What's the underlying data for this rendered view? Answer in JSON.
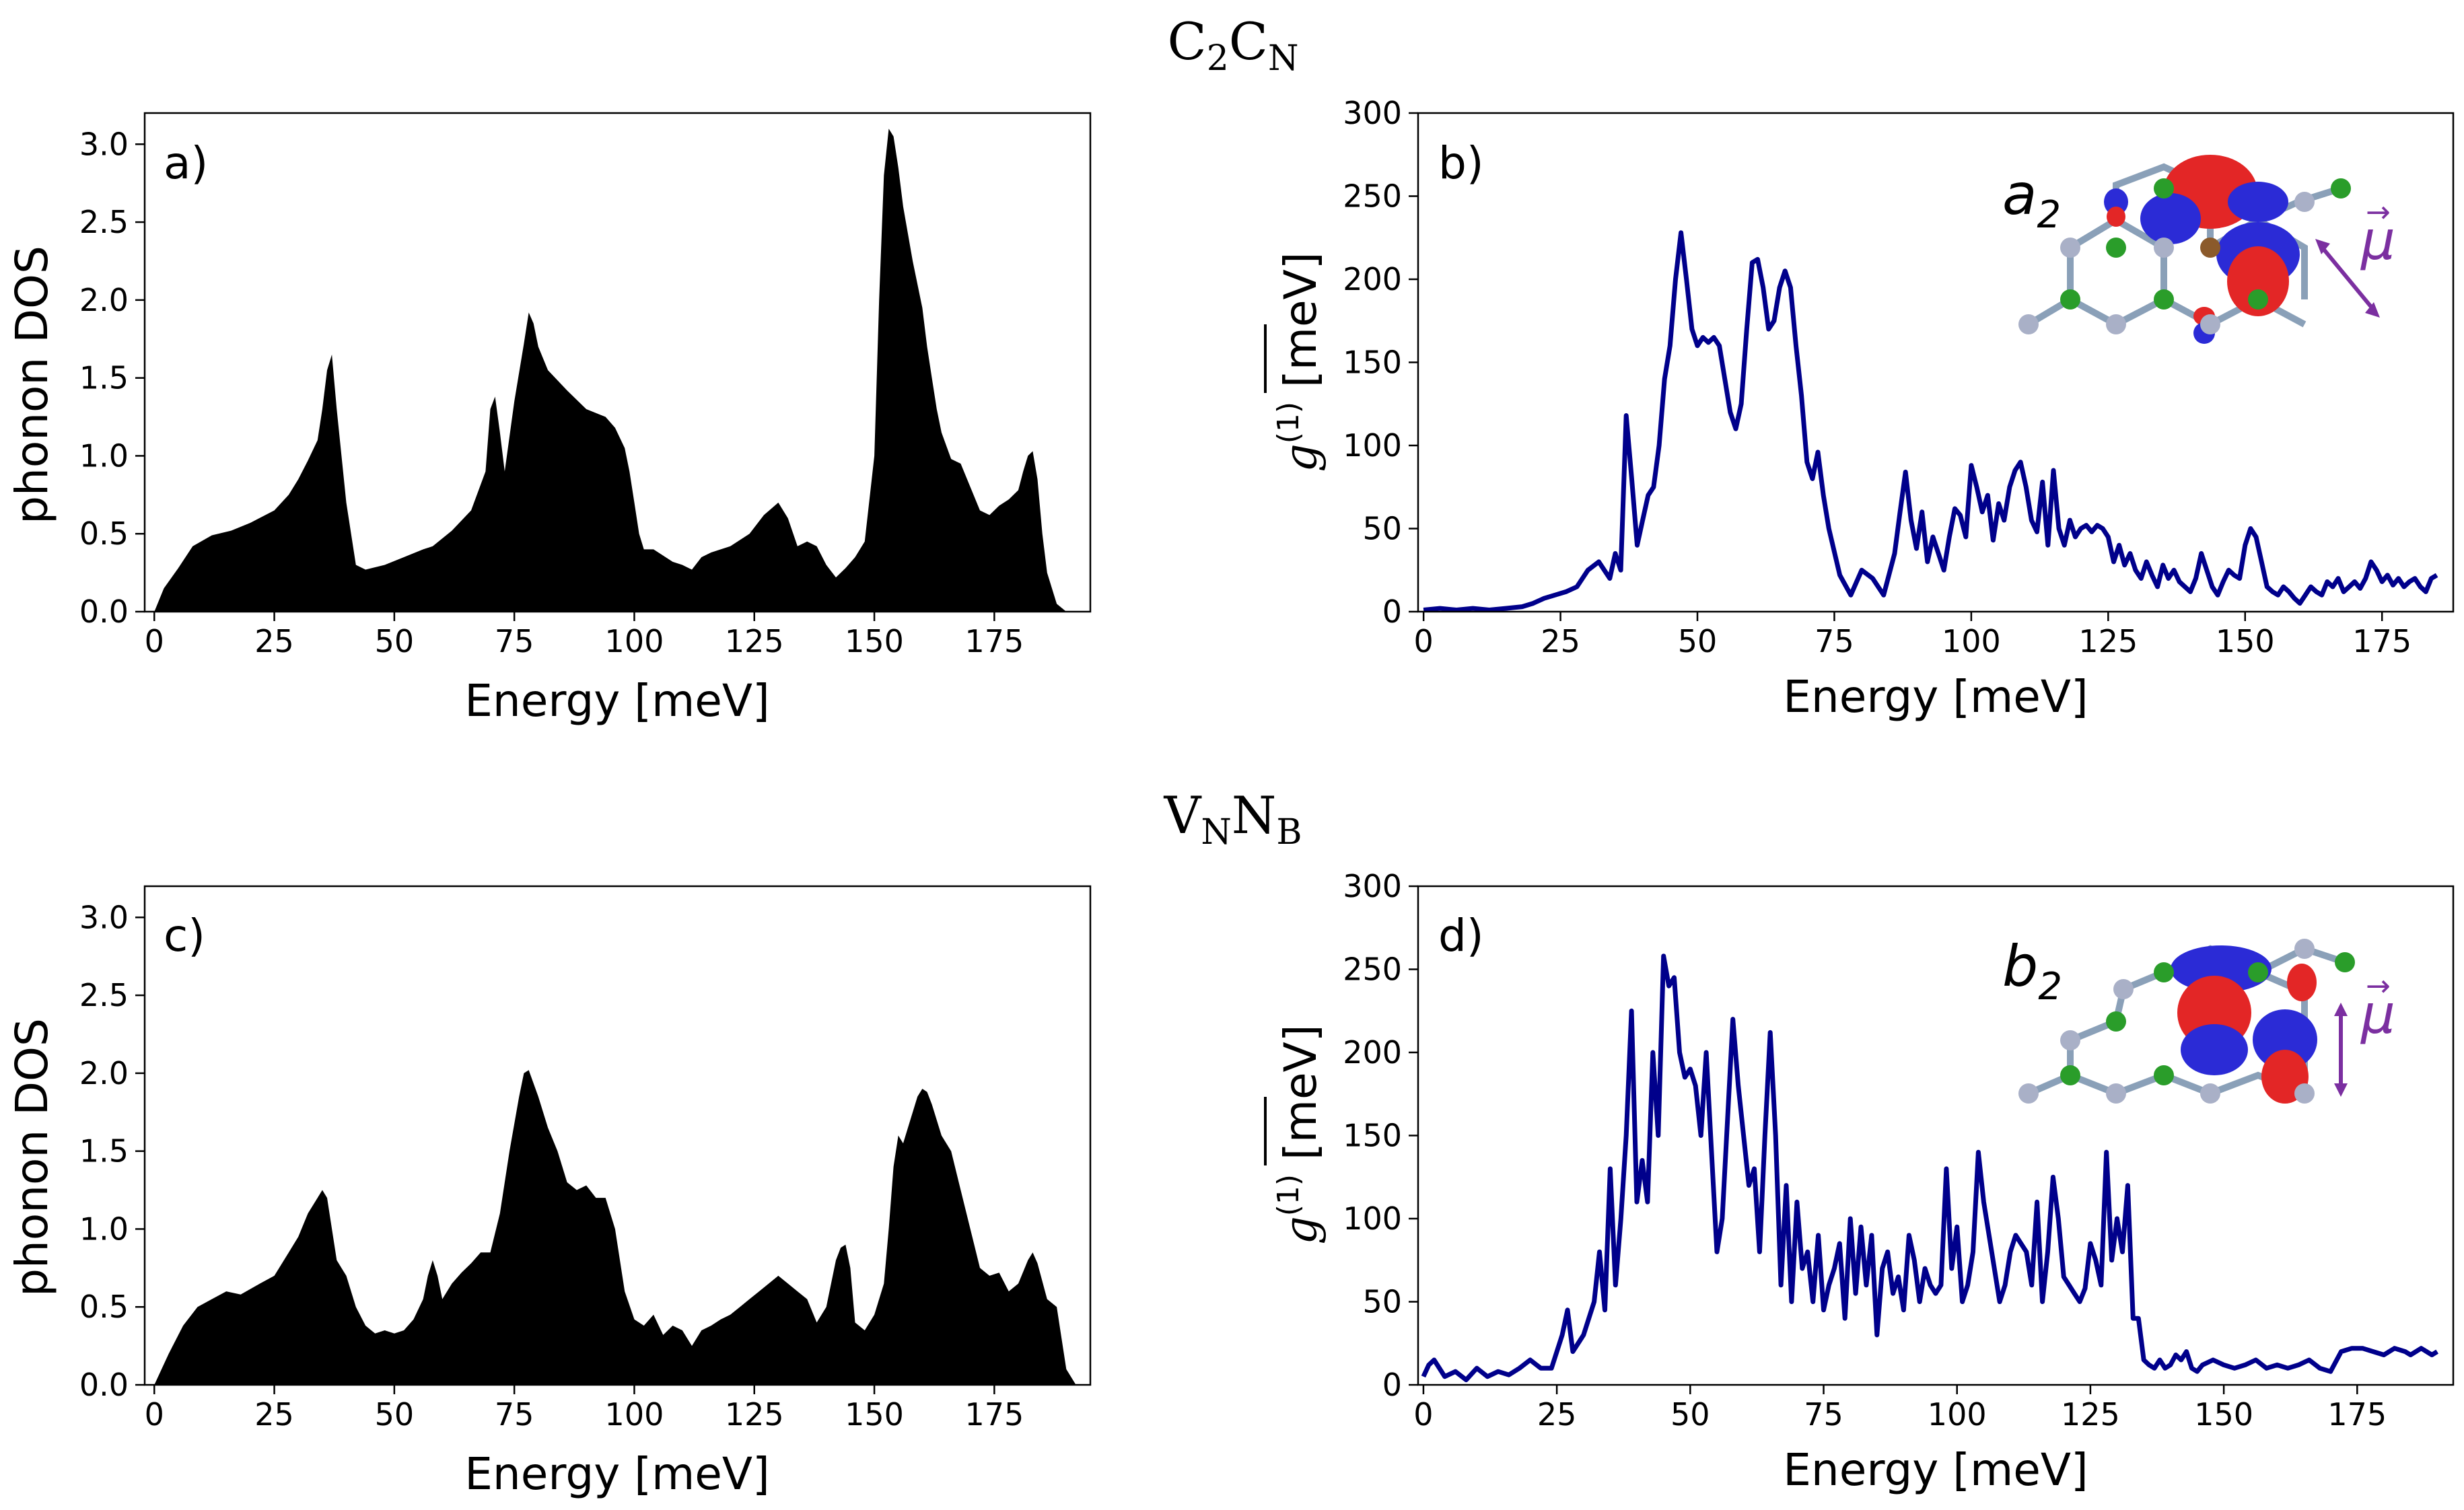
{
  "figure": {
    "rows": [
      {
        "title_main1": "C",
        "title_sub1": "2",
        "title_main2": "C",
        "title_sub2": "N"
      },
      {
        "title_main1": "V",
        "title_sub1": "N",
        "title_main2": "N",
        "title_sub2": "B"
      }
    ]
  },
  "colors": {
    "dos_fill": "#000000",
    "coupling_line": "#00008B",
    "orbital_red": "#e32626",
    "orbital_blue": "#2b2bd6",
    "atom_green": "#2a9d2a",
    "atom_grey": "#a9b0c7",
    "atom_brown": "#8b5a2b",
    "dipole_purple": "#7b2fa0"
  },
  "chart_data": [
    {
      "id": "a",
      "type": "area",
      "panel_label": "a)",
      "xlabel": "Energy [meV]",
      "ylabel": "phonon DOS",
      "xlim": [
        -2,
        195
      ],
      "ylim": [
        0,
        3.2
      ],
      "xticks": [
        0,
        25,
        50,
        75,
        100,
        125,
        150,
        175
      ],
      "yticks": [
        0.0,
        0.5,
        1.0,
        1.5,
        2.0,
        2.5,
        3.0
      ],
      "ytick_labels": [
        "0.0",
        "0.5",
        "1.0",
        "1.5",
        "2.0",
        "2.5",
        "3.0"
      ],
      "x": [
        0,
        2,
        5,
        8,
        12,
        16,
        20,
        25,
        28,
        30,
        32,
        34,
        35,
        36,
        37,
        38,
        40,
        42,
        44,
        48,
        52,
        56,
        58,
        62,
        66,
        69,
        70,
        71,
        72,
        73,
        75,
        77,
        78,
        79,
        80,
        82,
        86,
        90,
        94,
        96,
        98,
        99,
        100,
        101,
        102,
        104,
        108,
        110,
        112,
        114,
        116,
        120,
        124,
        127,
        130,
        132,
        134,
        136,
        138,
        140,
        142,
        144,
        146,
        148,
        150,
        151,
        152,
        153,
        154,
        155,
        156,
        158,
        160,
        161,
        162,
        163,
        164,
        166,
        168,
        170,
        172,
        174,
        176,
        178,
        180,
        181,
        182,
        183,
        184,
        185,
        186,
        188,
        190,
        192
      ],
      "values": [
        0.0,
        0.15,
        0.28,
        0.42,
        0.49,
        0.52,
        0.57,
        0.65,
        0.75,
        0.85,
        0.97,
        1.1,
        1.3,
        1.55,
        1.65,
        1.3,
        0.7,
        0.3,
        0.27,
        0.3,
        0.35,
        0.4,
        0.42,
        0.52,
        0.65,
        0.9,
        1.3,
        1.38,
        1.15,
        0.9,
        1.35,
        1.72,
        1.92,
        1.85,
        1.7,
        1.55,
        1.42,
        1.3,
        1.25,
        1.18,
        1.05,
        0.9,
        0.7,
        0.5,
        0.4,
        0.4,
        0.32,
        0.3,
        0.27,
        0.35,
        0.38,
        0.42,
        0.5,
        0.62,
        0.7,
        0.6,
        0.42,
        0.45,
        0.42,
        0.3,
        0.22,
        0.28,
        0.35,
        0.45,
        1.0,
        2.0,
        2.8,
        3.1,
        3.05,
        2.85,
        2.6,
        2.25,
        1.95,
        1.7,
        1.5,
        1.3,
        1.15,
        0.98,
        0.95,
        0.8,
        0.65,
        0.62,
        0.68,
        0.72,
        0.78,
        0.9,
        1.0,
        1.03,
        0.85,
        0.5,
        0.25,
        0.05,
        0.0,
        0.0
      ]
    },
    {
      "id": "b",
      "type": "line",
      "panel_label": "b)",
      "xlabel": "Energy [meV]",
      "ylabel": "g(1) [meV]",
      "ylabel_symbol": "g",
      "ylabel_superscript": "(1)",
      "ylabel_unit": " [meV]",
      "orbital_label_base": "a",
      "orbital_label_sub": "2",
      "dipole_label": "μ",
      "xlim": [
        -1,
        188
      ],
      "ylim": [
        0,
        300
      ],
      "xticks": [
        0,
        25,
        50,
        75,
        100,
        125,
        150,
        175
      ],
      "yticks": [
        0,
        50,
        100,
        150,
        200,
        250,
        300
      ],
      "x": [
        0,
        3,
        6,
        9,
        12,
        15,
        18,
        20,
        22,
        24,
        26,
        28,
        30,
        32,
        34,
        35,
        36,
        37,
        38,
        39,
        40,
        41,
        42,
        43,
        44,
        45,
        46,
        47,
        48,
        49,
        50,
        51,
        52,
        53,
        54,
        55,
        56,
        57,
        58,
        59,
        60,
        61,
        62,
        63,
        64,
        65,
        66,
        67,
        68,
        69,
        70,
        71,
        72,
        73,
        74,
        76,
        78,
        80,
        82,
        84,
        86,
        87,
        88,
        89,
        90,
        91,
        92,
        93,
        94,
        95,
        96,
        97,
        98,
        99,
        100,
        101,
        102,
        103,
        104,
        105,
        106,
        107,
        108,
        109,
        110,
        111,
        112,
        113,
        114,
        115,
        116,
        117,
        118,
        119,
        120,
        121,
        122,
        123,
        124,
        125,
        126,
        127,
        128,
        129,
        130,
        131,
        132,
        133,
        134,
        135,
        136,
        137,
        138,
        139,
        140,
        141,
        142,
        143,
        144,
        145,
        146,
        147,
        148,
        149,
        150,
        151,
        152,
        153,
        154,
        155,
        156,
        157,
        158,
        159,
        160,
        161,
        162,
        163,
        164,
        165,
        166,
        167,
        168,
        169,
        170,
        171,
        172,
        173,
        174,
        175,
        176,
        177,
        178,
        179,
        180,
        181,
        182,
        183,
        184,
        185
      ],
      "values": [
        1,
        2,
        1,
        2,
        1,
        2,
        3,
        5,
        8,
        10,
        12,
        15,
        25,
        30,
        20,
        35,
        25,
        118,
        80,
        40,
        55,
        70,
        75,
        100,
        140,
        160,
        200,
        228,
        200,
        170,
        160,
        165,
        162,
        165,
        160,
        140,
        120,
        110,
        125,
        170,
        210,
        212,
        195,
        170,
        175,
        195,
        205,
        195,
        160,
        130,
        90,
        80,
        96,
        70,
        50,
        22,
        10,
        25,
        20,
        10,
        35,
        60,
        84,
        55,
        38,
        60,
        30,
        45,
        35,
        25,
        45,
        62,
        58,
        45,
        88,
        75,
        60,
        70,
        43,
        65,
        55,
        75,
        85,
        90,
        75,
        55,
        48,
        78,
        40,
        85,
        50,
        40,
        55,
        45,
        50,
        52,
        48,
        52,
        50,
        45,
        30,
        40,
        28,
        35,
        25,
        20,
        30,
        22,
        15,
        28,
        20,
        25,
        18,
        15,
        12,
        20,
        35,
        25,
        15,
        10,
        18,
        25,
        22,
        20,
        40,
        50,
        45,
        30,
        15,
        12,
        10,
        15,
        12,
        8,
        5,
        10,
        15,
        12,
        10,
        18,
        15,
        20,
        12,
        15,
        18,
        14,
        20,
        30,
        25,
        18,
        22,
        16,
        20,
        15,
        18,
        20,
        15,
        12,
        20,
        22
      ]
    },
    {
      "id": "c",
      "type": "area",
      "panel_label": "c)",
      "xlabel": "Energy [meV]",
      "ylabel": "phonon DOS",
      "xlim": [
        -2,
        195
      ],
      "ylim": [
        0,
        3.2
      ],
      "xticks": [
        0,
        25,
        50,
        75,
        100,
        125,
        150,
        175
      ],
      "yticks": [
        0.0,
        0.5,
        1.0,
        1.5,
        2.0,
        2.5,
        3.0
      ],
      "ytick_labels": [
        "0.0",
        "0.5",
        "1.0",
        "1.5",
        "2.0",
        "2.5",
        "3.0"
      ],
      "x": [
        0,
        3,
        6,
        9,
        12,
        15,
        18,
        22,
        25,
        28,
        30,
        32,
        34,
        35,
        36,
        38,
        40,
        42,
        44,
        46,
        48,
        50,
        52,
        54,
        56,
        57,
        58,
        59,
        60,
        62,
        64,
        66,
        68,
        70,
        72,
        74,
        76,
        77,
        78,
        80,
        82,
        84,
        86,
        88,
        90,
        92,
        94,
        96,
        98,
        100,
        102,
        104,
        106,
        108,
        110,
        112,
        114,
        116,
        118,
        120,
        122,
        124,
        126,
        128,
        130,
        132,
        134,
        136,
        138,
        140,
        142,
        143,
        144,
        145,
        146,
        148,
        150,
        152,
        153,
        154,
        155,
        156,
        157,
        158,
        159,
        160,
        161,
        162,
        164,
        166,
        168,
        170,
        172,
        174,
        176,
        178,
        180,
        182,
        183,
        184,
        186,
        188,
        190,
        192
      ],
      "values": [
        0.0,
        0.2,
        0.38,
        0.5,
        0.55,
        0.6,
        0.58,
        0.65,
        0.7,
        0.85,
        0.95,
        1.1,
        1.2,
        1.25,
        1.2,
        0.8,
        0.7,
        0.5,
        0.38,
        0.33,
        0.35,
        0.33,
        0.35,
        0.42,
        0.55,
        0.7,
        0.8,
        0.7,
        0.55,
        0.65,
        0.72,
        0.78,
        0.85,
        0.85,
        1.1,
        1.5,
        1.85,
        2.0,
        2.02,
        1.85,
        1.65,
        1.5,
        1.3,
        1.25,
        1.28,
        1.2,
        1.2,
        1.0,
        0.6,
        0.42,
        0.38,
        0.45,
        0.32,
        0.38,
        0.35,
        0.25,
        0.35,
        0.38,
        0.42,
        0.45,
        0.5,
        0.55,
        0.6,
        0.65,
        0.7,
        0.65,
        0.6,
        0.55,
        0.4,
        0.5,
        0.8,
        0.88,
        0.9,
        0.75,
        0.4,
        0.35,
        0.45,
        0.65,
        1.0,
        1.4,
        1.6,
        1.55,
        1.65,
        1.75,
        1.85,
        1.9,
        1.88,
        1.8,
        1.6,
        1.5,
        1.25,
        1.0,
        0.75,
        0.7,
        0.72,
        0.6,
        0.65,
        0.8,
        0.85,
        0.78,
        0.55,
        0.5,
        0.1,
        0.0
      ]
    },
    {
      "id": "d",
      "type": "line",
      "panel_label": "d)",
      "xlabel": "Energy [meV]",
      "ylabel": "g(1) [meV]",
      "ylabel_symbol": "g",
      "ylabel_superscript": "(1)",
      "ylabel_unit": " [meV]",
      "orbital_label_base": "b",
      "orbital_label_sub": "2",
      "dipole_label": "μ",
      "xlim": [
        -1,
        193
      ],
      "ylim": [
        0,
        300
      ],
      "xticks": [
        0,
        25,
        50,
        75,
        100,
        125,
        150,
        175
      ],
      "yticks": [
        0,
        50,
        100,
        150,
        200,
        250,
        300
      ],
      "x": [
        0,
        1,
        2,
        4,
        6,
        8,
        10,
        12,
        14,
        16,
        18,
        20,
        22,
        24,
        26,
        27,
        28,
        29,
        30,
        31,
        32,
        33,
        34,
        35,
        36,
        37,
        38,
        39,
        40,
        41,
        42,
        43,
        44,
        45,
        46,
        47,
        48,
        49,
        50,
        51,
        52,
        53,
        54,
        55,
        56,
        57,
        58,
        59,
        60,
        61,
        62,
        63,
        64,
        65,
        66,
        67,
        68,
        69,
        70,
        71,
        72,
        73,
        74,
        75,
        76,
        77,
        78,
        79,
        80,
        81,
        82,
        83,
        84,
        85,
        86,
        87,
        88,
        89,
        90,
        91,
        92,
        93,
        94,
        95,
        96,
        97,
        98,
        99,
        100,
        101,
        102,
        103,
        104,
        105,
        106,
        107,
        108,
        109,
        110,
        111,
        112,
        113,
        114,
        115,
        116,
        117,
        118,
        119,
        120,
        121,
        122,
        123,
        124,
        125,
        126,
        127,
        128,
        129,
        130,
        131,
        132,
        133,
        134,
        135,
        136,
        137,
        138,
        139,
        140,
        141,
        142,
        143,
        144,
        145,
        146,
        148,
        150,
        152,
        154,
        156,
        158,
        160,
        162,
        164,
        166,
        168,
        170,
        172,
        174,
        176,
        178,
        180,
        182,
        184,
        185,
        186,
        187,
        188,
        189,
        190
      ],
      "values": [
        5,
        12,
        15,
        5,
        8,
        3,
        10,
        5,
        8,
        6,
        10,
        15,
        10,
        10,
        30,
        45,
        20,
        25,
        30,
        40,
        50,
        80,
        45,
        130,
        60,
        100,
        150,
        225,
        110,
        135,
        110,
        200,
        150,
        258,
        240,
        245,
        200,
        185,
        190,
        180,
        150,
        200,
        140,
        80,
        100,
        160,
        220,
        180,
        150,
        120,
        130,
        80,
        150,
        212,
        150,
        60,
        120,
        50,
        110,
        70,
        80,
        50,
        90,
        45,
        60,
        70,
        85,
        40,
        100,
        55,
        95,
        60,
        90,
        30,
        70,
        80,
        55,
        65,
        45,
        90,
        75,
        50,
        70,
        60,
        55,
        60,
        130,
        70,
        95,
        50,
        60,
        80,
        140,
        110,
        90,
        70,
        50,
        60,
        80,
        90,
        85,
        80,
        60,
        110,
        50,
        80,
        125,
        100,
        65,
        60,
        55,
        50,
        58,
        85,
        75,
        60,
        140,
        75,
        100,
        80,
        120,
        40,
        40,
        15,
        12,
        10,
        15,
        10,
        12,
        18,
        15,
        20,
        10,
        8,
        12,
        15,
        12,
        10,
        12,
        15,
        10,
        12,
        10,
        12,
        15,
        10,
        8,
        20,
        22,
        22,
        20,
        18,
        22,
        20,
        18,
        20,
        22,
        20,
        18,
        20
      ]
    }
  ]
}
